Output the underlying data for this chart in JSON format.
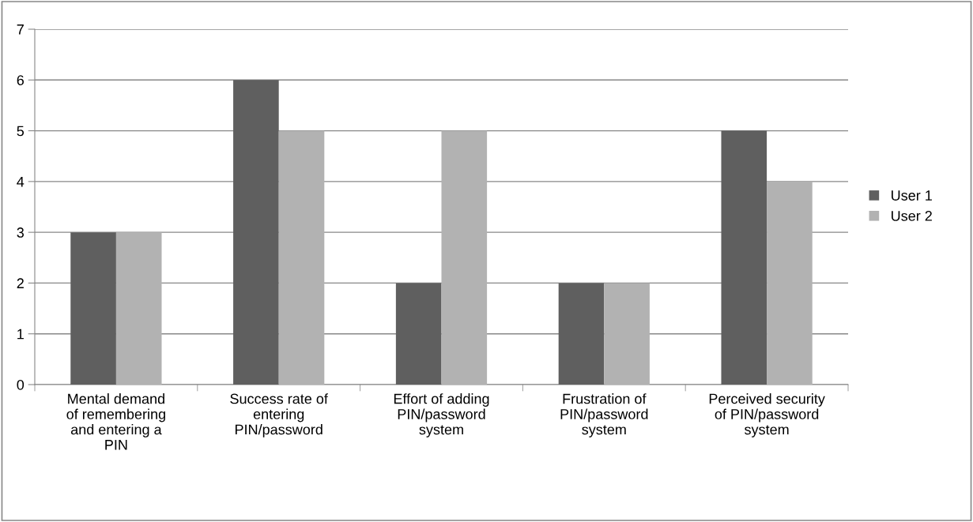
{
  "chart_data": {
    "type": "bar",
    "categories": [
      "Mental demand\nof remembering\nand entering a\nPIN",
      "Success rate of\nentering\nPIN/password",
      "Effort of adding\nPIN/password\nsystem",
      "Frustration of\nPIN/password\nsystem",
      "Perceived security\nof PIN/password\nsystem"
    ],
    "series": [
      {
        "name": "User 1",
        "color": "#5f5f5f",
        "values": [
          3,
          6,
          2,
          2,
          5
        ]
      },
      {
        "name": "User 2",
        "color": "#b2b2b2",
        "values": [
          3,
          5,
          5,
          2,
          4
        ]
      }
    ],
    "ylim": [
      0,
      7
    ],
    "yticks": [
      0,
      1,
      2,
      3,
      4,
      5,
      6,
      7
    ],
    "grid": "y",
    "legend": "right"
  }
}
